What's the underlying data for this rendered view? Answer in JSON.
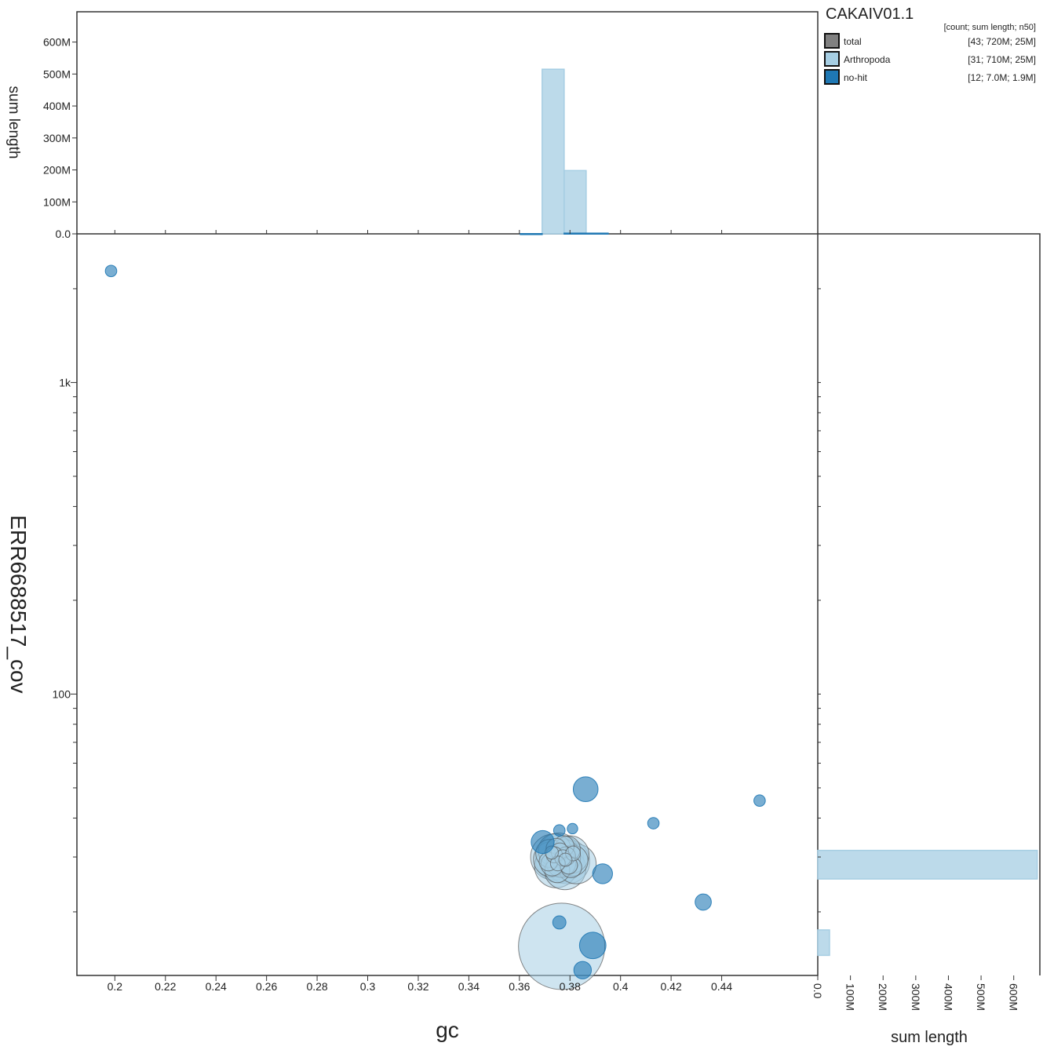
{
  "chart_data": {
    "type": "scatter",
    "title": "CAKAIV01.1",
    "xlabel": "gc",
    "ylabel": "ERR6688517_cov",
    "x_axis": {
      "range": [
        0.185,
        0.478
      ],
      "ticks": [
        0.2,
        0.22,
        0.24,
        0.26,
        0.28,
        0.3,
        0.32,
        0.34,
        0.36,
        0.38,
        0.4,
        0.42,
        0.44
      ],
      "tick_labels": [
        "0.2",
        "0.22",
        "0.24",
        "0.26",
        "0.28",
        "0.3",
        "0.32",
        "0.34",
        "0.36",
        "0.38",
        "0.4",
        "0.42",
        "0.44"
      ]
    },
    "y_axis": {
      "scale": "log",
      "range": [
        12.5,
        3000
      ],
      "labeled_ticks": [
        1000,
        100
      ],
      "tick_labels": [
        "1k",
        "100"
      ]
    },
    "legend": {
      "placement": "top-right",
      "header": "[count; sum length; n50]",
      "entries": [
        {
          "name": "total",
          "stats": "[43; 720M; 25M]",
          "color": "#808080"
        },
        {
          "name": "Arthropoda",
          "stats": "[31; 710M; 25M]",
          "color": "#a6cee3"
        },
        {
          "name": "no-hit",
          "stats": "[12; 7.0M; 1.9M]",
          "color": "#1f78b4"
        }
      ]
    },
    "top_histogram": {
      "ylabel": "sum length",
      "tick_labels": [
        "0.0",
        "100M",
        "200M",
        "300M",
        "400M",
        "500M",
        "600M"
      ],
      "tick_values": [
        0,
        100,
        200,
        300,
        400,
        500,
        600
      ],
      "bins": [
        {
          "x0": 0.369,
          "x1": 0.3777,
          "value": 515,
          "series": "Arthropoda"
        },
        {
          "x0": 0.3777,
          "x1": 0.3864,
          "value": 198,
          "series": "Arthropoda"
        },
        {
          "x0": 0.3777,
          "x1": 0.3951,
          "value": 2,
          "series": "no-hit"
        },
        {
          "x0": 0.3604,
          "x1": 0.369,
          "value": 0.5,
          "series": "no-hit"
        }
      ]
    },
    "right_histogram": {
      "xlabel": "sum length",
      "tick_labels": [
        "0.0",
        "100M",
        "200M",
        "300M",
        "400M",
        "500M",
        "600M"
      ],
      "tick_values": [
        0,
        100,
        200,
        300,
        400,
        500,
        600
      ],
      "bins": [
        {
          "y0": 25.5,
          "y1": 31.5,
          "value": 672,
          "series": "Arthropoda"
        },
        {
          "y0": 14.5,
          "y1": 17.5,
          "value": 36,
          "series": "Arthropoda"
        }
      ]
    },
    "series": [
      {
        "name": "Arthropoda",
        "points": [
          {
            "x": 0.3767,
            "y": 15.5,
            "size": 170
          },
          {
            "x": 0.3825,
            "y": 28.5,
            "size": 36
          },
          {
            "x": 0.379,
            "y": 29.0,
            "size": 45
          },
          {
            "x": 0.376,
            "y": 29.5,
            "size": 52
          },
          {
            "x": 0.3745,
            "y": 28.0,
            "size": 42
          },
          {
            "x": 0.3735,
            "y": 30.0,
            "size": 48
          },
          {
            "x": 0.378,
            "y": 27.5,
            "size": 40
          },
          {
            "x": 0.3755,
            "y": 31.0,
            "size": 35
          },
          {
            "x": 0.377,
            "y": 30.0,
            "size": 30
          },
          {
            "x": 0.3725,
            "y": 29.5,
            "size": 28
          },
          {
            "x": 0.38,
            "y": 30.5,
            "size": 33
          },
          {
            "x": 0.374,
            "y": 31.5,
            "size": 25
          },
          {
            "x": 0.381,
            "y": 29.2,
            "size": 22
          },
          {
            "x": 0.3765,
            "y": 28.8,
            "size": 20
          },
          {
            "x": 0.372,
            "y": 30.8,
            "size": 18
          },
          {
            "x": 0.379,
            "y": 31.8,
            "size": 15
          },
          {
            "x": 0.375,
            "y": 27.2,
            "size": 14
          },
          {
            "x": 0.373,
            "y": 28.4,
            "size": 12
          },
          {
            "x": 0.3775,
            "y": 32.5,
            "size": 10
          },
          {
            "x": 0.3805,
            "y": 27.8,
            "size": 10
          },
          {
            "x": 0.3745,
            "y": 32.0,
            "size": 9
          },
          {
            "x": 0.3715,
            "y": 29.0,
            "size": 8
          },
          {
            "x": 0.3785,
            "y": 30.2,
            "size": 8
          },
          {
            "x": 0.376,
            "y": 31.2,
            "size": 7
          },
          {
            "x": 0.3795,
            "y": 28.2,
            "size": 7
          },
          {
            "x": 0.3738,
            "y": 30.5,
            "size": 6
          },
          {
            "x": 0.3772,
            "y": 29.8,
            "size": 6
          },
          {
            "x": 0.3752,
            "y": 28.6,
            "size": 5
          },
          {
            "x": 0.3812,
            "y": 30.8,
            "size": 5
          },
          {
            "x": 0.3728,
            "y": 31.0,
            "size": 4
          },
          {
            "x": 0.3782,
            "y": 29.4,
            "size": 4
          }
        ]
      },
      {
        "name": "no-hit",
        "points": [
          {
            "x": 0.3862,
            "y": 49.5,
            "size": 14
          },
          {
            "x": 0.389,
            "y": 15.6,
            "size": 16
          },
          {
            "x": 0.3692,
            "y": 33.5,
            "size": 12
          },
          {
            "x": 0.3929,
            "y": 26.5,
            "size": 9
          },
          {
            "x": 0.385,
            "y": 13.0,
            "size": 7
          },
          {
            "x": 0.4327,
            "y": 21.5,
            "size": 6
          },
          {
            "x": 0.3758,
            "y": 18.5,
            "size": 4
          },
          {
            "x": 0.413,
            "y": 38.5,
            "size": 3
          },
          {
            "x": 0.455,
            "y": 45.5,
            "size": 3
          },
          {
            "x": 0.1985,
            "y": 2280,
            "size": 3
          },
          {
            "x": 0.3758,
            "y": 36.5,
            "size": 3
          },
          {
            "x": 0.381,
            "y": 37.0,
            "size": 2.5
          }
        ]
      }
    ]
  }
}
